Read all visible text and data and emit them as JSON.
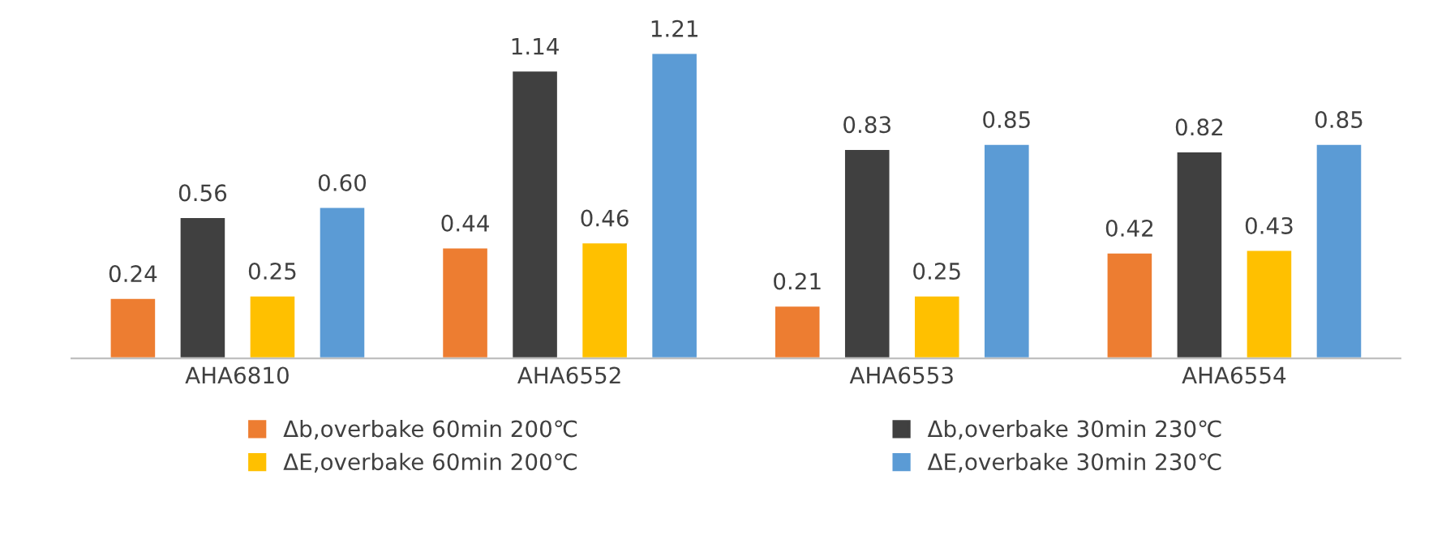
{
  "chart_data": {
    "type": "bar",
    "categories": [
      "AHA6810",
      "AHA6552",
      "AHA6553",
      "AHA6554"
    ],
    "series": [
      {
        "name": "Δb,overbake 60min 200℃",
        "color": "#ed7d31",
        "values": [
          0.24,
          0.44,
          0.21,
          0.42
        ],
        "value_labels": [
          "0.24",
          "0.44",
          "0.21",
          "0.42"
        ]
      },
      {
        "name": "Δb,overbake 30min 230℃",
        "color": "#404040",
        "values": [
          0.56,
          1.14,
          0.83,
          0.82
        ],
        "value_labels": [
          "0.56",
          "1.14",
          "0.83",
          "0.82"
        ]
      },
      {
        "name": "ΔE,overbake 60min 200℃",
        "color": "#ffc000",
        "values": [
          0.25,
          0.46,
          0.25,
          0.43
        ],
        "value_labels": [
          "0.25",
          "0.46",
          "0.25",
          "0.43"
        ]
      },
      {
        "name": "ΔE,overbake 30min 230℃",
        "color": "#5b9bd5",
        "values": [
          0.6,
          1.21,
          0.85,
          0.85
        ],
        "value_labels": [
          "0.60",
          "1.21",
          "0.85",
          "0.85"
        ]
      }
    ],
    "legend": "bottom",
    "grid": false
  }
}
